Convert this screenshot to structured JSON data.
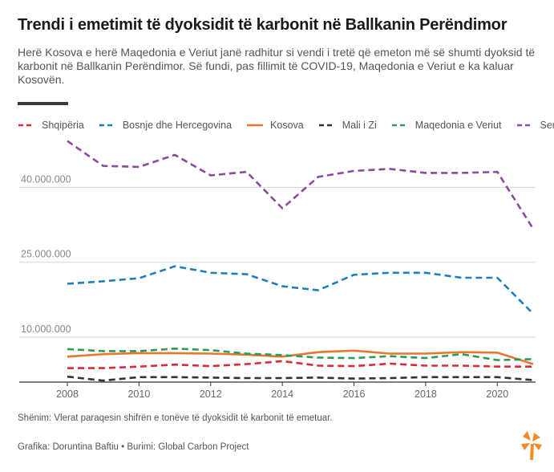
{
  "title": "Trendi i emetimit të dyoksidit të karbonit në Ballkanin Perëndimor",
  "subtitle": "Herë Kosova e herë Maqedonia e Veriut janë radhitur si vendi i tretë që emeton më së shumti dyoksid të karbonit në Ballkanin Perëndimor. Së fundi, pas fillimit të COVID-19, Maqedonia e Veriut e ka kaluar Kosovën.",
  "note": "Shënim: Vlerat paraqesin shifrën e tonëve të dyoksidit të karbonit të emetuar.",
  "credit": "Grafika: Doruntina Baftiu • Burimi: Global Carbon Project",
  "chart_data": {
    "type": "line",
    "x": [
      2008,
      2009,
      2010,
      2011,
      2012,
      2013,
      2014,
      2015,
      2016,
      2017,
      2018,
      2019,
      2020,
      2021
    ],
    "xticks": [
      2008,
      2010,
      2012,
      2014,
      2016,
      2018,
      2020
    ],
    "xtick_labels": [
      "2008",
      "2010",
      "2012",
      "2014",
      "2016",
      "2018",
      "2020"
    ],
    "ylim": [
      1000000,
      51000000
    ],
    "yticks": [
      10000000,
      25000000,
      40000000
    ],
    "ytick_labels": [
      "10.000.000",
      "25.000.000",
      "40.000.000"
    ],
    "grid": "horizontal",
    "legend_position": "top",
    "line_style": "dashed",
    "series": [
      {
        "name": "Shqipëria",
        "color": "#d92c35",
        "dashed": true,
        "values": [
          3800000,
          3800000,
          4100000,
          4500000,
          4200000,
          4600000,
          5200000,
          4300000,
          4200000,
          4700000,
          4300000,
          4300000,
          4100000,
          4100000
        ]
      },
      {
        "name": "Bosnje dhe Hercegovina",
        "color": "#1f7fb8",
        "dashed": true,
        "values": [
          20700000,
          21200000,
          21800000,
          24200000,
          22900000,
          22600000,
          20200000,
          19400000,
          22500000,
          22900000,
          22900000,
          21900000,
          21900000,
          14700000
        ]
      },
      {
        "name": "Kosova",
        "color": "#e8772e",
        "dashed": false,
        "values": [
          6100000,
          6600000,
          6800000,
          6800000,
          6700000,
          6500000,
          6100000,
          7000000,
          7300000,
          6700000,
          6700000,
          7000000,
          6900000,
          4600000
        ]
      },
      {
        "name": "Mali i Zi",
        "color": "#333333",
        "dashed": true,
        "values": [
          2100000,
          1300000,
          2000000,
          2000000,
          1900000,
          1800000,
          1800000,
          1900000,
          1700000,
          1800000,
          2000000,
          2000000,
          2000000,
          1400000
        ]
      },
      {
        "name": "Maqedonia e Veriut",
        "color": "#2a9a5a",
        "dashed": true,
        "values": [
          7600000,
          7200000,
          7200000,
          7700000,
          7400000,
          6700000,
          6400000,
          5900000,
          5800000,
          6200000,
          5800000,
          6600000,
          5400000,
          5600000
        ]
      },
      {
        "name": "Serbia",
        "color": "#8b4a9c",
        "dashed": true,
        "values": [
          49300000,
          44300000,
          44100000,
          46500000,
          42400000,
          43100000,
          35800000,
          42100000,
          43300000,
          43700000,
          42900000,
          42900000,
          43100000,
          31700000
        ]
      }
    ]
  }
}
